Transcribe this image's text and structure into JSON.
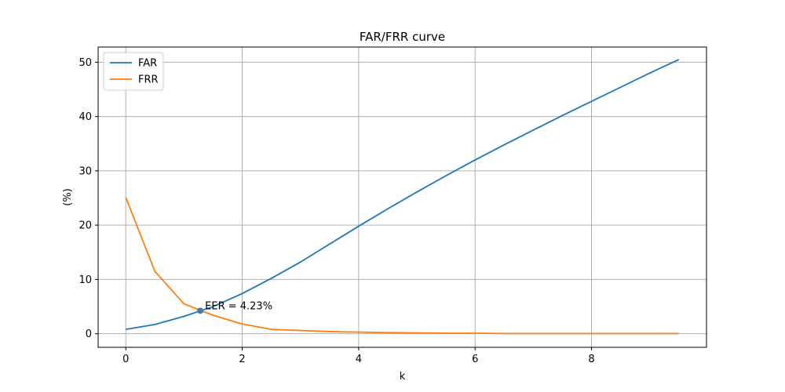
{
  "chart_data": {
    "type": "line",
    "title": "FAR/FRR curve",
    "xlabel": "k",
    "ylabel": "(%)",
    "xlim": [
      -0.475,
      9.975
    ],
    "ylim": [
      -2.5,
      52.8
    ],
    "xticks": [
      0,
      2,
      4,
      6,
      8
    ],
    "yticks": [
      0,
      10,
      20,
      30,
      40,
      50
    ],
    "grid": true,
    "legend_position": "top-left",
    "colors": {
      "FAR": "#1f77b4",
      "FRR": "#ff7f0e",
      "grid": "#b0b0b0",
      "axes": "#000000",
      "marker": "#4a7a9c"
    },
    "series": [
      {
        "name": "FAR",
        "x": [
          0,
          0.5,
          1,
          1.5,
          2,
          2.5,
          3,
          3.5,
          4,
          4.5,
          5,
          5.5,
          6,
          6.5,
          7,
          7.5,
          8,
          8.5,
          9,
          9.5
        ],
        "values": [
          0.8,
          1.7,
          3.2,
          5.0,
          7.4,
          10.2,
          13.2,
          16.5,
          19.8,
          23.0,
          26.1,
          29.1,
          32.0,
          34.8,
          37.5,
          40.2,
          42.8,
          45.4,
          48.0,
          50.5
        ]
      },
      {
        "name": "FRR",
        "x": [
          0,
          0.5,
          1,
          1.5,
          2,
          2.5,
          3,
          3.5,
          4,
          4.5,
          5,
          5.5,
          6,
          6.5,
          7,
          7.5,
          8,
          8.5,
          9,
          9.5
        ],
        "values": [
          25.1,
          11.5,
          5.5,
          3.4,
          1.8,
          0.8,
          0.6,
          0.4,
          0.3,
          0.2,
          0.15,
          0.1,
          0.1,
          0.05,
          0.05,
          0.05,
          0.05,
          0.05,
          0.05,
          0.05
        ]
      }
    ],
    "annotations": [
      {
        "text": "EER = 4.23%",
        "x": 1.28,
        "y": 4.23
      }
    ]
  }
}
